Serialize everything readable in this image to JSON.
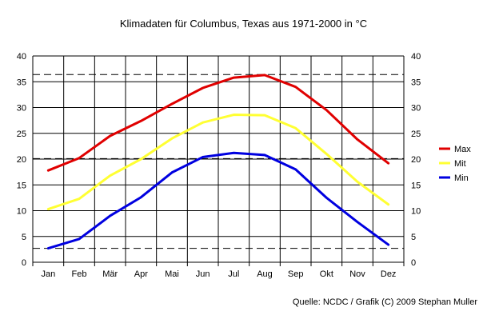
{
  "chart_data": {
    "type": "line",
    "title": "Klimadaten für Columbus, Texas aus 1971-2000 in °C",
    "categories": [
      "Jan",
      "Feb",
      "Mär",
      "Apr",
      "Mai",
      "Jun",
      "Jul",
      "Aug",
      "Sep",
      "Okt",
      "Nov",
      "Dez"
    ],
    "ylim": [
      0,
      40
    ],
    "yticks": [
      0,
      5,
      10,
      15,
      20,
      25,
      30,
      35,
      40
    ],
    "grid": true,
    "legend_position": "right",
    "reference_lines": [
      2.7,
      20.1,
      36.4
    ],
    "series": [
      {
        "name": "Max",
        "color": "#e00000",
        "values": [
          17.8,
          20.2,
          24.5,
          27.4,
          30.7,
          33.8,
          35.8,
          36.3,
          34.0,
          29.5,
          23.8,
          19.2
        ]
      },
      {
        "name": "Mit",
        "color": "#ffff33",
        "values": [
          10.3,
          12.3,
          16.8,
          20.0,
          24.0,
          27.1,
          28.6,
          28.5,
          26.0,
          21.0,
          15.6,
          11.2
        ]
      },
      {
        "name": "Min",
        "color": "#0000e0",
        "values": [
          2.7,
          4.5,
          9.0,
          12.6,
          17.4,
          20.4,
          21.2,
          20.8,
          18.0,
          12.5,
          7.8,
          3.4
        ]
      }
    ]
  },
  "source": "Quelle: NCDC / Grafik (C) 2009 Stephan Muller"
}
